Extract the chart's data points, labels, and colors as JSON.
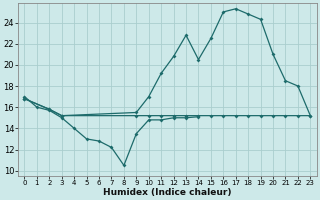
{
  "bg_color": "#cde9e9",
  "grid_color": "#aacece",
  "line_color": "#1d6b6b",
  "line_dip_x": [
    0,
    1,
    2,
    3,
    4,
    5,
    6,
    7,
    8,
    9,
    10,
    11,
    12,
    13,
    14
  ],
  "line_dip_y": [
    17,
    16,
    15.7,
    15.0,
    14.0,
    13.0,
    12.8,
    12.2,
    10.5,
    13.5,
    14.8,
    14.8,
    15.0,
    15.0,
    15.1
  ],
  "line_flat_x": [
    0,
    2,
    3,
    9,
    10,
    11,
    12,
    13,
    14,
    15,
    16,
    17,
    18,
    19,
    20,
    21,
    22,
    23
  ],
  "line_flat_y": [
    16.8,
    15.8,
    15.2,
    15.2,
    15.2,
    15.2,
    15.2,
    15.2,
    15.2,
    15.2,
    15.2,
    15.2,
    15.2,
    15.2,
    15.2,
    15.2,
    15.2,
    15.2
  ],
  "line_rise_x": [
    0,
    2,
    3,
    9,
    10,
    11,
    12,
    13,
    14,
    15,
    16,
    17,
    18,
    19,
    20,
    21,
    22,
    23
  ],
  "line_rise_y": [
    16.8,
    15.8,
    15.2,
    15.5,
    17.0,
    19.2,
    20.8,
    22.8,
    20.5,
    22.5,
    25.0,
    25.3,
    24.8,
    24.3,
    21.0,
    18.5,
    18.0,
    15.2
  ],
  "xlim": [
    -0.5,
    23.5
  ],
  "ylim": [
    9.5,
    25.8
  ],
  "yticks": [
    10,
    12,
    14,
    16,
    18,
    20,
    22,
    24
  ],
  "xticks": [
    0,
    1,
    2,
    3,
    4,
    5,
    6,
    7,
    8,
    9,
    10,
    11,
    12,
    13,
    14,
    15,
    16,
    17,
    18,
    19,
    20,
    21,
    22,
    23
  ],
  "xlabel": "Humidex (Indice chaleur)"
}
